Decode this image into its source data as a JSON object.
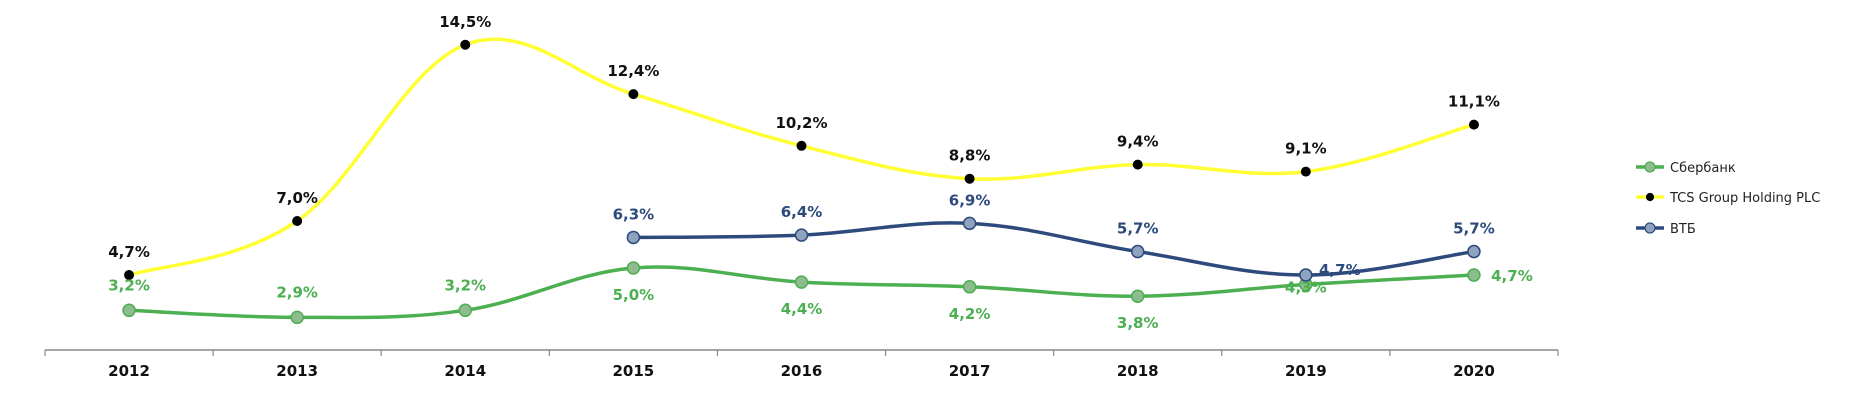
{
  "chart_data": {
    "type": "line",
    "title": "",
    "xlabel": "",
    "ylabel": "",
    "categories": [
      "2012",
      "2013",
      "2014",
      "2015",
      "2016",
      "2017",
      "2018",
      "2019",
      "2020"
    ],
    "ylim": [
      0,
      16
    ],
    "grid": false,
    "legend_position": "right",
    "series": [
      {
        "name": "Сбербанк",
        "color": "#4caf50",
        "marker_color": "#8fbc8f",
        "values": [
          3.2,
          2.9,
          3.2,
          5.0,
          4.4,
          4.2,
          3.8,
          4.3,
          4.7
        ],
        "labels": [
          "3,2%",
          "2,9%",
          "3,2%",
          "5,0%",
          "4,4%",
          "4,2%",
          "3,8%",
          "4,3%",
          "4,7%"
        ]
      },
      {
        "name": "TCS Group Holding PLC",
        "color": "#ffff33",
        "marker_color": "#000000",
        "values": [
          4.7,
          7.0,
          14.5,
          12.4,
          10.2,
          8.8,
          9.4,
          9.1,
          11.1
        ],
        "labels": [
          "4,7%",
          "7,0%",
          "14,5%",
          "12,4%",
          "10,2%",
          "8,8%",
          "9,4%",
          "9,1%",
          "11,1%"
        ]
      },
      {
        "name": "ВТБ",
        "color": "#2d4a7c",
        "marker_color": "#8fa3c0",
        "values": [
          null,
          null,
          null,
          6.3,
          6.4,
          6.9,
          5.7,
          4.7,
          5.7
        ],
        "labels": [
          "",
          "",
          "",
          "6,3%",
          "6,4%",
          "6,9%",
          "5,7%",
          "4,7%",
          "5,7%"
        ]
      }
    ]
  }
}
